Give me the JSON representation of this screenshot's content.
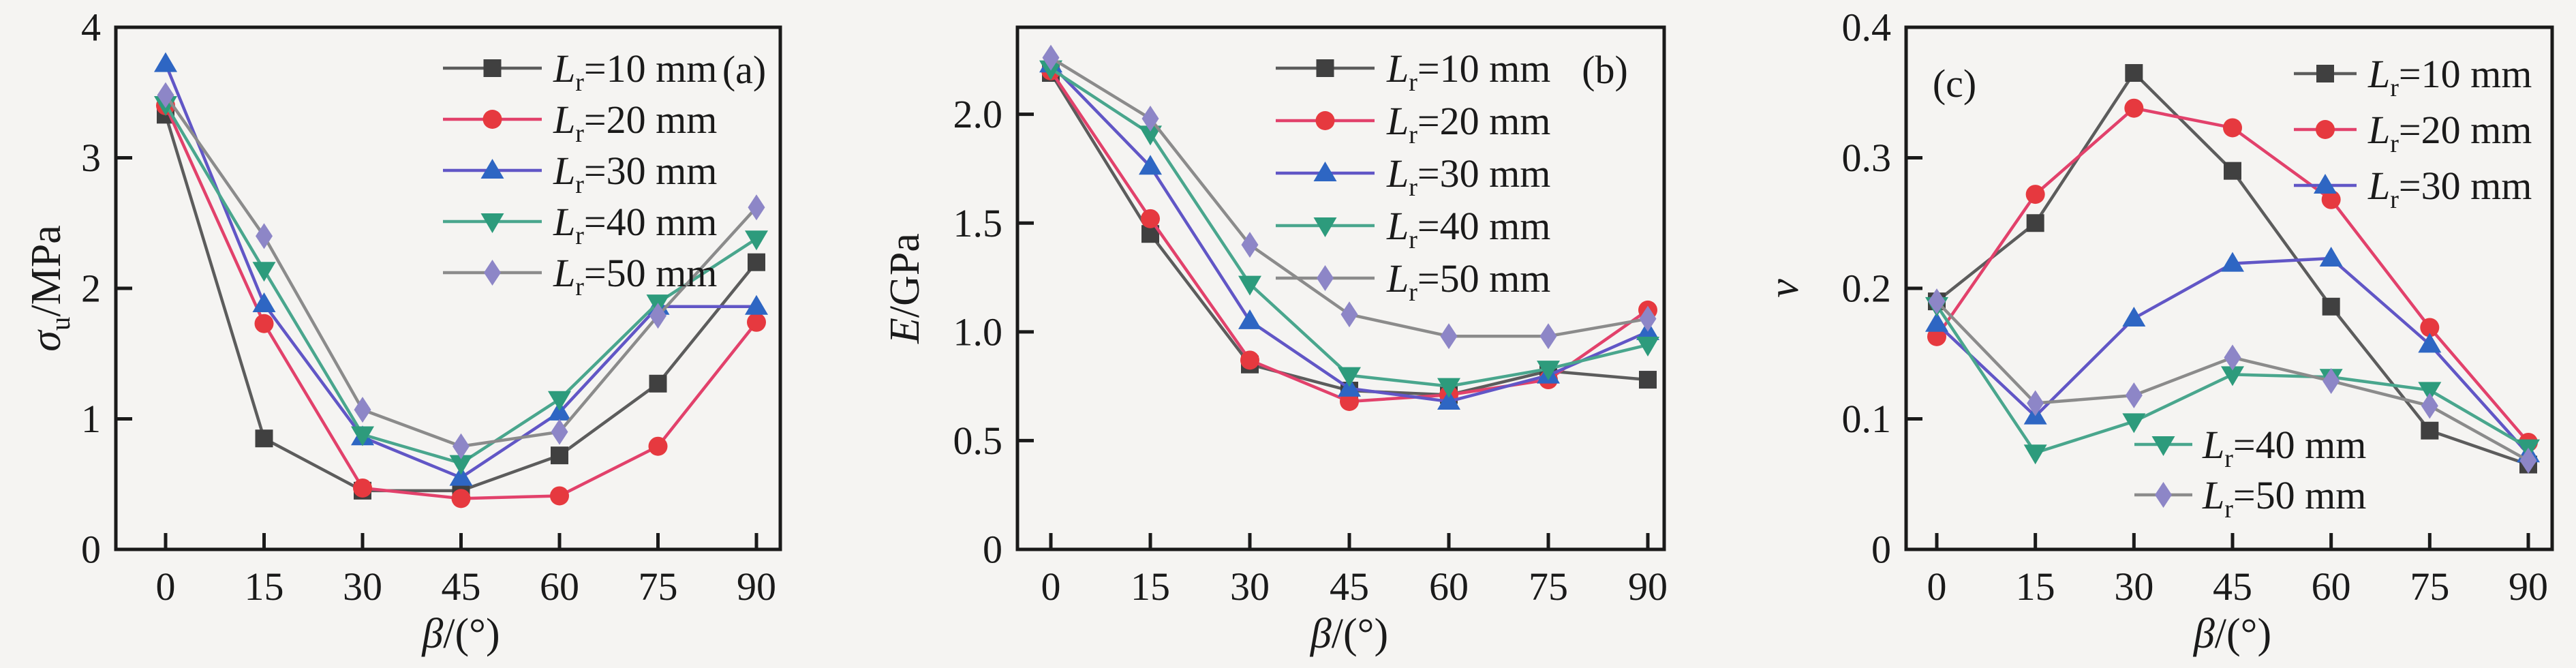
{
  "figure": {
    "background": "#f5f4f2",
    "axis_color": "#1a1a1a",
    "text_color": "#1a1a1a"
  },
  "chart_data": [
    {
      "type": "line",
      "panel_label": "(a)",
      "xlabel": {
        "sym": "β",
        "sub": "",
        "rest": "/(°)"
      },
      "ylabel": {
        "sym": "σ",
        "sub": "u",
        "rest": "/MPa"
      },
      "x": [
        0,
        15,
        30,
        45,
        60,
        75,
        90
      ],
      "xtick_labels": [
        "0",
        "15",
        "30",
        "45",
        "60",
        "75",
        "90"
      ],
      "ylim": [
        0,
        4
      ],
      "yticks": [
        0,
        1,
        2,
        3,
        4
      ],
      "ytick_labels": [
        "0",
        "1",
        "2",
        "3",
        "4"
      ],
      "grid": false,
      "legend_position": "top-right-inside",
      "series": [
        {
          "name": {
            "prefix": "L",
            "sub": "r",
            "rest": "=10 mm"
          },
          "marker": "square",
          "marker_color": "#404040",
          "line_color": "#5c5c5c",
          "values": [
            3.33,
            0.85,
            0.45,
            0.45,
            0.72,
            1.27,
            2.2
          ]
        },
        {
          "name": {
            "prefix": "L",
            "sub": "r",
            "rest": "=20 mm"
          },
          "marker": "circle",
          "marker_color": "#e6393f",
          "line_color": "#e2416b",
          "values": [
            3.4,
            1.73,
            0.47,
            0.39,
            0.41,
            0.79,
            1.74
          ]
        },
        {
          "name": {
            "prefix": "L",
            "sub": "r",
            "rest": "=30 mm"
          },
          "marker": "triangle-up",
          "marker_color": "#2e66c3",
          "line_color": "#6156c6",
          "values": [
            3.72,
            1.88,
            0.86,
            0.55,
            1.05,
            1.86,
            1.86
          ]
        },
        {
          "name": {
            "prefix": "L",
            "sub": "r",
            "rest": "=40 mm"
          },
          "marker": "triangle-down",
          "marker_color": "#2d9b7c",
          "line_color": "#49a68d",
          "values": [
            3.41,
            2.14,
            0.88,
            0.66,
            1.15,
            1.89,
            2.38
          ]
        },
        {
          "name": {
            "prefix": "L",
            "sub": "r",
            "rest": "=50 mm"
          },
          "marker": "diamond",
          "marker_color": "#8d86c7",
          "line_color": "#8b8b8b",
          "values": [
            3.48,
            2.4,
            1.07,
            0.79,
            0.9,
            1.79,
            2.62
          ]
        }
      ]
    },
    {
      "type": "line",
      "panel_label": "(b)",
      "xlabel": {
        "sym": "β",
        "sub": "",
        "rest": "/(°)"
      },
      "ylabel": {
        "sym": "E",
        "sub": "",
        "rest": "/GPa"
      },
      "x": [
        0,
        15,
        30,
        45,
        60,
        75,
        90
      ],
      "xtick_labels": [
        "0",
        "15",
        "30",
        "45",
        "60",
        "75",
        "90"
      ],
      "ylim": [
        0,
        2.4
      ],
      "yticks": [
        0,
        0.5,
        1.0,
        1.5,
        2.0
      ],
      "ytick_labels": [
        "0",
        "0.5",
        "1.0",
        "1.5",
        "2.0"
      ],
      "grid": false,
      "legend_position": "top-right-inside",
      "series": [
        {
          "name": {
            "prefix": "L",
            "sub": "r",
            "rest": "=10 mm"
          },
          "marker": "square",
          "marker_color": "#404040",
          "line_color": "#5c5c5c",
          "values": [
            2.19,
            1.45,
            0.85,
            0.73,
            0.71,
            0.82,
            0.78
          ]
        },
        {
          "name": {
            "prefix": "L",
            "sub": "r",
            "rest": "=20 mm"
          },
          "marker": "circle",
          "marker_color": "#e6393f",
          "line_color": "#e2416b",
          "values": [
            2.2,
            1.52,
            0.87,
            0.68,
            0.71,
            0.78,
            1.1
          ]
        },
        {
          "name": {
            "prefix": "L",
            "sub": "r",
            "rest": "=30 mm"
          },
          "marker": "triangle-up",
          "marker_color": "#2e66c3",
          "line_color": "#6156c6",
          "values": [
            2.23,
            1.76,
            1.05,
            0.74,
            0.68,
            0.8,
            1.0
          ]
        },
        {
          "name": {
            "prefix": "L",
            "sub": "r",
            "rest": "=40 mm"
          },
          "marker": "triangle-down",
          "marker_color": "#2d9b7c",
          "line_color": "#49a68d",
          "values": [
            2.21,
            1.91,
            1.22,
            0.8,
            0.75,
            0.83,
            0.94
          ]
        },
        {
          "name": {
            "prefix": "L",
            "sub": "r",
            "rest": "=50 mm"
          },
          "marker": "diamond",
          "marker_color": "#8d86c7",
          "line_color": "#8b8b8b",
          "values": [
            2.26,
            1.98,
            1.4,
            1.08,
            0.98,
            0.98,
            1.06
          ]
        }
      ]
    },
    {
      "type": "line",
      "panel_label": "(c)",
      "xlabel": {
        "sym": "β",
        "sub": "",
        "rest": "/(°)"
      },
      "ylabel": {
        "sym": "ν",
        "sub": "",
        "rest": ""
      },
      "x": [
        0,
        15,
        30,
        45,
        60,
        75,
        90
      ],
      "xtick_labels": [
        "0",
        "15",
        "30",
        "45",
        "60",
        "75",
        "90"
      ],
      "ylim": [
        0,
        0.4
      ],
      "yticks": [
        0,
        0.1,
        0.2,
        0.3,
        0.4
      ],
      "ytick_labels": [
        "0",
        "0.1",
        "0.2",
        "0.3",
        "0.4"
      ],
      "grid": false,
      "legend_position": "split: first three top-right-inside, last two bottom-center-inside",
      "series": [
        {
          "name": {
            "prefix": "L",
            "sub": "r",
            "rest": "=10 mm"
          },
          "marker": "square",
          "marker_color": "#404040",
          "line_color": "#5c5c5c",
          "values": [
            0.19,
            0.25,
            0.365,
            0.29,
            0.186,
            0.091,
            0.065
          ]
        },
        {
          "name": {
            "prefix": "L",
            "sub": "r",
            "rest": "=20 mm"
          },
          "marker": "circle",
          "marker_color": "#e6393f",
          "line_color": "#e2416b",
          "values": [
            0.163,
            0.272,
            0.338,
            0.323,
            0.268,
            0.17,
            0.082
          ]
        },
        {
          "name": {
            "prefix": "L",
            "sub": "r",
            "rest": "=30 mm"
          },
          "marker": "triangle-up",
          "marker_color": "#2e66c3",
          "line_color": "#6156c6",
          "values": [
            0.173,
            0.102,
            0.177,
            0.219,
            0.223,
            0.157,
            0.073
          ]
        },
        {
          "name": {
            "prefix": "L",
            "sub": "r",
            "rest": "=40 mm"
          },
          "marker": "triangle-down",
          "marker_color": "#2d9b7c",
          "line_color": "#49a68d",
          "values": [
            0.187,
            0.074,
            0.098,
            0.134,
            0.132,
            0.122,
            0.078
          ]
        },
        {
          "name": {
            "prefix": "L",
            "sub": "r",
            "rest": "=50 mm"
          },
          "marker": "diamond",
          "marker_color": "#8d86c7",
          "line_color": "#8b8b8b",
          "values": [
            0.19,
            0.112,
            0.118,
            0.147,
            0.129,
            0.11,
            0.068
          ]
        }
      ]
    }
  ]
}
